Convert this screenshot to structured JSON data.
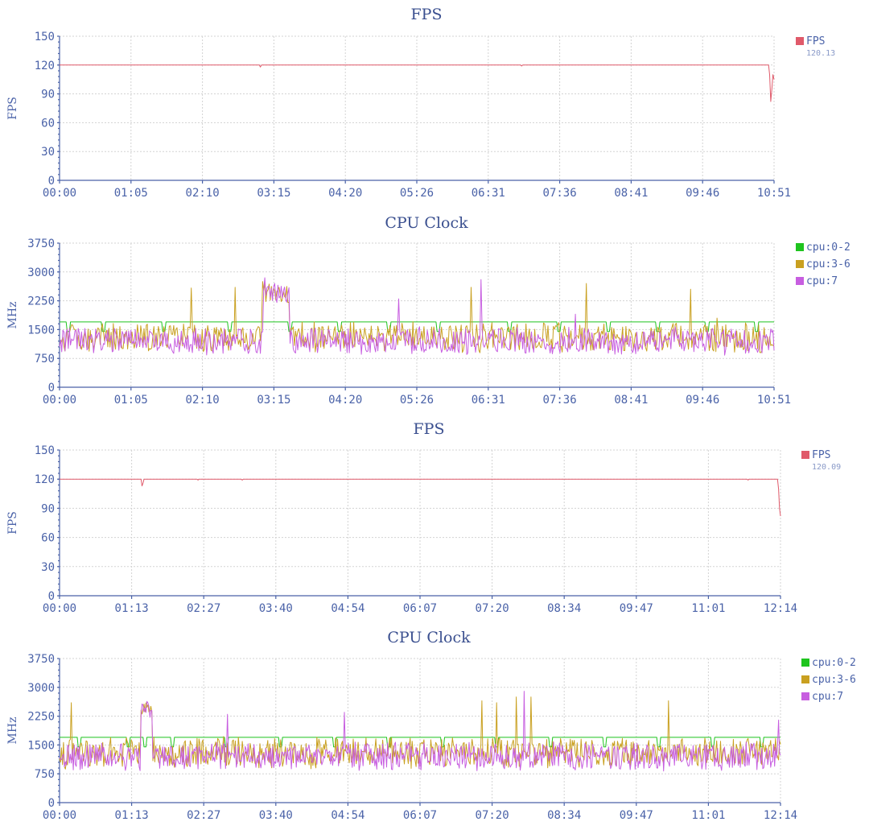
{
  "colors": {
    "fps": "#e05a6a",
    "cpu_0_2": "#1ec41e",
    "cpu_3_6": "#c9a020",
    "cpu_7": "#c75ee0",
    "text": "#4a62a8",
    "title": "#3a4f8f"
  },
  "chart_data": [
    {
      "type": "line",
      "title": "FPS",
      "ylabel": "FPS",
      "ylim": [
        0,
        150
      ],
      "yticks": [
        "0",
        "30",
        "60",
        "90",
        "120",
        "150"
      ],
      "xticks": [
        "00:00",
        "01:05",
        "02:10",
        "03:15",
        "04:20",
        "05:26",
        "06:31",
        "07:36",
        "08:41",
        "09:46",
        "10:51"
      ],
      "xrange_seconds": [
        0,
        651
      ],
      "grid": true,
      "legend_placement": "right",
      "series": [
        {
          "name": "FPS",
          "legend_value": "120.13",
          "color": "#e05a6a",
          "x": [
            0,
            182,
            183,
            184,
            420,
            421,
            422,
            646,
            647,
            648,
            649,
            650,
            651
          ],
          "y": [
            120,
            120,
            118,
            120,
            120,
            119,
            120,
            120,
            110,
            82,
            95,
            110,
            105
          ]
        }
      ]
    },
    {
      "type": "line",
      "title": "CPU Clock",
      "ylabel": "MHz",
      "ylim": [
        0,
        3750
      ],
      "yticks": [
        "0",
        "750",
        "1500",
        "2250",
        "3000",
        "3750"
      ],
      "xticks": [
        "00:00",
        "01:05",
        "02:10",
        "03:15",
        "04:20",
        "05:26",
        "06:31",
        "07:36",
        "08:41",
        "09:46",
        "10:51"
      ],
      "xrange_seconds": [
        0,
        651
      ],
      "grid": true,
      "legend_placement": "right",
      "series": [
        {
          "name": "cpu:0-2",
          "color": "#1ec41e",
          "baseline": 1700,
          "dips": [
            8,
            40,
            95,
            155,
            210,
            255,
            300,
            345,
            410,
            455,
            500,
            545,
            590,
            635
          ]
        },
        {
          "name": "cpu:3-6",
          "color": "#c9a020",
          "base": 1300,
          "spread": 350,
          "spikes": [
            [
              120,
              2580
            ],
            [
              160,
              2600
            ],
            [
              185,
              2750
            ],
            [
              200,
              2600
            ],
            [
              375,
              2600
            ],
            [
              480,
              2700
            ],
            [
              575,
              2550
            ],
            [
              599,
              1800
            ]
          ]
        },
        {
          "name": "cpu:7",
          "color": "#c75ee0",
          "base": 1200,
          "spread": 320,
          "spikes": [
            [
              187,
              2850
            ],
            [
              196,
              2700
            ],
            [
              309,
              2300
            ],
            [
              384,
              2800
            ],
            [
              470,
              1900
            ]
          ]
        }
      ]
    },
    {
      "type": "line",
      "title": "FPS",
      "ylabel": "FPS",
      "ylim": [
        0,
        150
      ],
      "yticks": [
        "0",
        "30",
        "60",
        "90",
        "120",
        "150"
      ],
      "xticks": [
        "00:00",
        "01:13",
        "02:27",
        "03:40",
        "04:54",
        "06:07",
        "07:20",
        "08:34",
        "09:47",
        "11:01",
        "12:14"
      ],
      "xrange_seconds": [
        0,
        734
      ],
      "grid": true,
      "legend_placement": "right",
      "series": [
        {
          "name": "FPS",
          "legend_value": "120.09",
          "color": "#e05a6a",
          "x": [
            0,
            83,
            84,
            85,
            86,
            140,
            141,
            142,
            185,
            186,
            187,
            700,
            701,
            702,
            731,
            732,
            733,
            734
          ],
          "y": [
            120,
            120,
            113,
            116,
            120,
            120,
            119,
            120,
            120,
            119,
            120,
            120,
            119,
            120,
            120,
            110,
            90,
            82
          ]
        }
      ]
    },
    {
      "type": "line",
      "title": "CPU Clock",
      "ylabel": "MHz",
      "ylim": [
        0,
        3750
      ],
      "yticks": [
        "0",
        "750",
        "1500",
        "2250",
        "3000",
        "3750"
      ],
      "xticks": [
        "00:00",
        "01:13",
        "02:27",
        "03:40",
        "04:54",
        "06:07",
        "07:20",
        "08:34",
        "09:47",
        "11:01",
        "12:14"
      ],
      "xrange_seconds": [
        0,
        734
      ],
      "grid": true,
      "legend_placement": "right",
      "series": [
        {
          "name": "cpu:0-2",
          "color": "#1ec41e",
          "baseline": 1700,
          "dips": [
            20,
            70,
            87,
            115,
            170,
            225,
            280,
            335,
            390,
            445,
            500,
            555,
            610,
            665,
            715
          ]
        },
        {
          "name": "cpu:3-6",
          "color": "#c9a020",
          "base": 1300,
          "spread": 360,
          "spikes": [
            [
              12,
              2600
            ],
            [
              90,
              2550
            ],
            [
              430,
              2650
            ],
            [
              445,
              2600
            ],
            [
              465,
              2750
            ],
            [
              480,
              2750
            ],
            [
              620,
              2650
            ]
          ]
        },
        {
          "name": "cpu:7",
          "color": "#c75ee0",
          "base": 1200,
          "spread": 330,
          "spikes": [
            [
              171,
              2300
            ],
            [
              290,
              2350
            ],
            [
              473,
              2900
            ],
            [
              732,
              2150
            ]
          ]
        }
      ]
    }
  ]
}
